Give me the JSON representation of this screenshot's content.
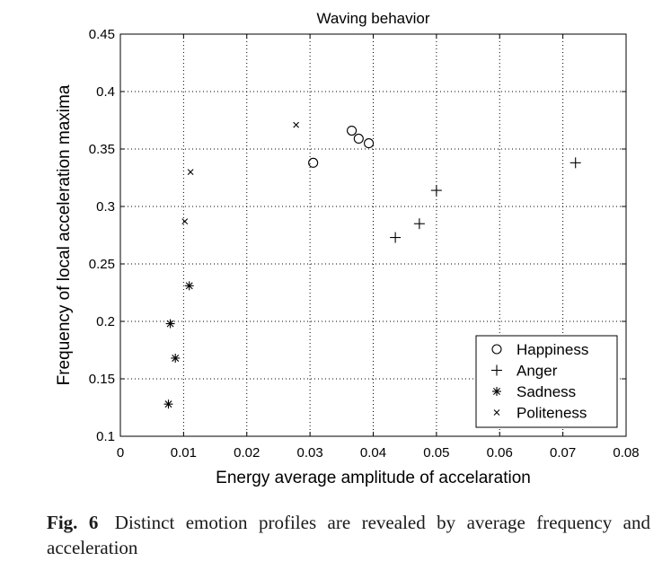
{
  "chart_data": {
    "type": "scatter",
    "title": "Waving behavior",
    "xlabel": "Energy average amplitude of accelaration",
    "ylabel": "Frequency of local acceleration maxima",
    "xlim": [
      0,
      0.08
    ],
    "ylim": [
      0.1,
      0.45
    ],
    "xticks": [
      "0",
      "0.01",
      "0.02",
      "0.03",
      "0.04",
      "0.05",
      "0.06",
      "0.07",
      "0.08"
    ],
    "yticks": [
      "0.1",
      "0.15",
      "0.2",
      "0.25",
      "0.3",
      "0.35",
      "0.4",
      "0.45"
    ],
    "grid": true,
    "legend_position": "bottom-right",
    "series": [
      {
        "name": "Happiness",
        "marker": "circle",
        "x": [
          0.0305,
          0.0366,
          0.0377,
          0.0393
        ],
        "y": [
          0.338,
          0.366,
          0.359,
          0.355
        ]
      },
      {
        "name": "Anger",
        "marker": "plus",
        "x": [
          0.0435,
          0.0473,
          0.05,
          0.072
        ],
        "y": [
          0.273,
          0.285,
          0.314,
          0.338
        ]
      },
      {
        "name": "Sadness",
        "marker": "asterisk",
        "x": [
          0.0076,
          0.0079,
          0.0087,
          0.0109
        ],
        "y": [
          0.128,
          0.198,
          0.168,
          0.231
        ]
      },
      {
        "name": "Politeness",
        "marker": "cross",
        "x": [
          0.0102,
          0.0111,
          0.0278
        ],
        "y": [
          0.287,
          0.33,
          0.371
        ]
      }
    ]
  },
  "caption": {
    "label": "Fig. 6",
    "text": "Distinct emotion profiles are revealed by average frequency and acceleration"
  }
}
